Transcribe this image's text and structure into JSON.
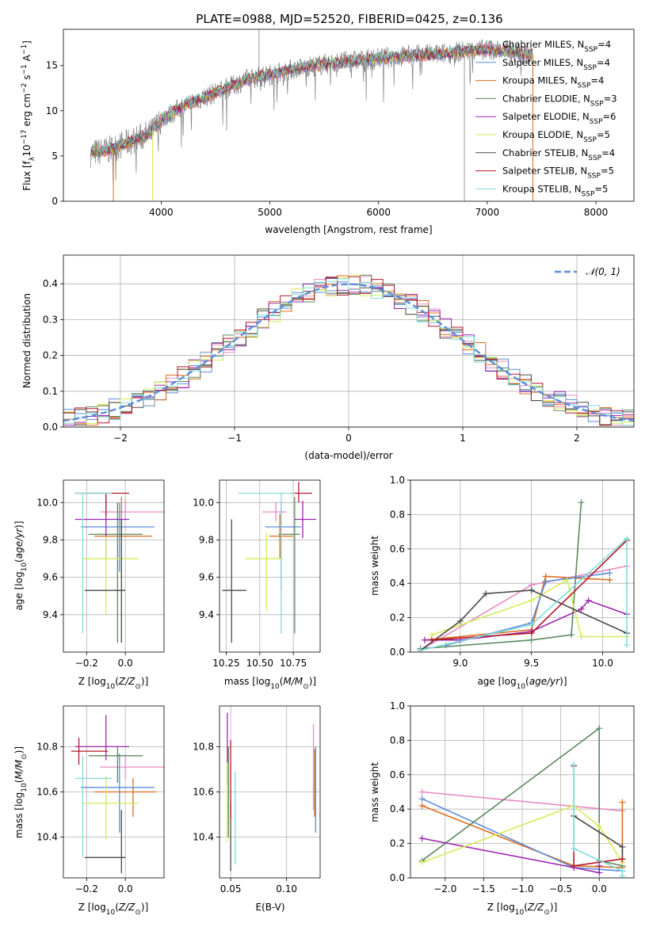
{
  "title": "PLATE=0988, MJD=52520, FIBERID=0425, z=0.136",
  "colors": [
    "#e78ac3",
    "#dd6d1f",
    "#e08214",
    "#5b8a5e",
    "#9c27b0",
    "#c9e65a",
    "#3f3f3f",
    "#b2182b",
    "#7fd6d6"
  ],
  "colors_named": {
    "pink": "#e78ac3",
    "orange": "#dd6d1f",
    "blue": "#5b8bdc",
    "green": "#5b8a5e",
    "purple": "#9c27b0",
    "lime": "#d4ec58",
    "dark": "#4a4a4a",
    "red": "#b2182b",
    "cyan": "#80dcd8",
    "gray": "#808080"
  },
  "chart_data": [
    {
      "id": "spectrum",
      "type": "line",
      "xlabel": "wavelength [Angstrom, rest frame]",
      "ylabel_main": "Flux [f",
      "ylabel_sub": "λ",
      "ylabel_mid": "10",
      "ylabel_exp1": "−17",
      "ylabel_rest": " erg cm",
      "ylabel_exp2": "−2",
      "ylabel_rest2": " s",
      "ylabel_exp3": "−1",
      "ylabel_rest3": " A",
      "ylabel_exp4": "−1",
      "ylabel_end": "]",
      "xlim": [
        3100,
        8350
      ],
      "ylim": [
        0,
        19
      ],
      "xticks": [
        4000,
        5000,
        6000,
        7000,
        8000
      ],
      "yticks": [
        0,
        5,
        10,
        15
      ],
      "legend": [
        {
          "label": "Chabrier MILES, N",
          "sub": "SSP",
          "n": "=4",
          "color": "#e78ac3"
        },
        {
          "label": "Salpeter MILES, N",
          "sub": "SSP",
          "n": "=4",
          "color": "#5b8bdc"
        },
        {
          "label": "Kroupa MILES, N",
          "sub": "SSP",
          "n": "=4",
          "color": "#dd6d1f"
        },
        {
          "label": "Chabrier ELODIE, N",
          "sub": "SSP",
          "n": "=3",
          "color": "#5b8a5e"
        },
        {
          "label": "Salpeter ELODIE, N",
          "sub": "SSP",
          "n": "=6",
          "color": "#9c27b0"
        },
        {
          "label": "Kroupa ELODIE, N",
          "sub": "SSP",
          "n": "=5",
          "color": "#d4ec58"
        },
        {
          "label": "Chabrier STELIB, N",
          "sub": "SSP",
          "n": "=4",
          "color": "#4a4a4a"
        },
        {
          "label": "Salpeter STELIB, N",
          "sub": "SSP",
          "n": "=5",
          "color": "#b2182b"
        },
        {
          "label": "Kroupa STELIB, N",
          "sub": "SSP",
          "n": "=5",
          "color": "#80dcd8"
        }
      ],
      "continuum": {
        "x": [
          3350,
          3500,
          3700,
          3900,
          4000,
          4200,
          4400,
          4600,
          4800,
          5000,
          5300,
          5600,
          6000,
          6300,
          6600,
          6800,
          7000,
          7200,
          7400
        ],
        "y": [
          5.3,
          5.6,
          6.5,
          7.5,
          9.0,
          10.5,
          11.5,
          12.5,
          13.5,
          14.0,
          14.8,
          15.3,
          15.8,
          16.1,
          16.3,
          16.6,
          16.8,
          16.6,
          16.2
        ]
      }
    },
    {
      "id": "residuals",
      "type": "histogram",
      "xlabel": "(data-model)/error",
      "ylabel": "Normed distribution",
      "xlim": [
        -2.5,
        2.5
      ],
      "ylim": [
        0,
        0.48
      ],
      "xticks": [
        -2,
        -1,
        0,
        1,
        2
      ],
      "yticks": [
        0.0,
        0.1,
        0.2,
        0.3,
        0.4
      ],
      "legend_label": "𝒩(0, 1)",
      "bin_width": 0.1
    },
    {
      "id": "age_vs_Z",
      "type": "errorbar",
      "xlabel": "Z [log",
      "xlabel_sub": "10",
      "xlabel_rest": "(Z/Z",
      "xlabel_sub2": "⊙",
      "xlabel_end": ")]",
      "ylabel": "age  [log",
      "ylabel_sub": "10",
      "ylabel_rest": "(age/yr)]",
      "xlim": [
        -0.32,
        0.2
      ],
      "ylim": [
        9.2,
        10.12
      ],
      "xticks": [
        -0.2,
        0.0
      ],
      "yticks": [
        9.4,
        9.6,
        9.8,
        10.0
      ],
      "points": [
        {
          "x": 0.0,
          "xerr": [
            0.13,
            0.22
          ],
          "y": 9.95,
          "yerr": [
            0.04,
            0.07
          ],
          "color": "#e78ac3"
        },
        {
          "x": -0.02,
          "xerr": [
            0.14,
            0.16
          ],
          "y": 9.82,
          "yerr": [
            0.0,
            0.21
          ],
          "color": "#dd6d1f"
        },
        {
          "x": -0.03,
          "xerr": [
            0.2,
            0.18
          ],
          "y": 9.87,
          "yerr": [
            0.24,
            0.13
          ],
          "color": "#5b8bdc"
        },
        {
          "x": -0.04,
          "xerr": [
            0.15,
            0.13
          ],
          "y": 9.83,
          "yerr": [
            0.58,
            0.17
          ],
          "color": "#5b8a5e"
        },
        {
          "x": -0.1,
          "xerr": [
            0.16,
            0.12
          ],
          "y": 9.91,
          "yerr": [
            0.21,
            0.13
          ],
          "color": "#9c27b0"
        },
        {
          "x": -0.1,
          "xerr": [
            0.12,
            0.17
          ],
          "y": 9.7,
          "yerr": [
            0.3,
            0.12
          ],
          "color": "#d4ec58"
        },
        {
          "x": -0.02,
          "xerr": [
            0.19,
            0.02
          ],
          "y": 9.53,
          "yerr": [
            0.28,
            0.38
          ],
          "color": "#4a4a4a"
        },
        {
          "x": -0.1,
          "xerr": [
            0.16,
            0.12
          ],
          "y": 10.05,
          "yerr": [
            0.12,
            0.0
          ],
          "color": "#b2182b"
        },
        {
          "x": -0.22,
          "xerr": [
            0.04,
            0.15
          ],
          "y": 10.05,
          "yerr": [
            0.75,
            0.0
          ],
          "color": "#80dcd8"
        }
      ]
    },
    {
      "id": "age_vs_mass",
      "type": "errorbar",
      "xlabel": "mass [log",
      "xlabel_sub": "10",
      "xlabel_rest": "(M/M",
      "xlabel_sub2": "⊙",
      "xlabel_end": ")]",
      "xlim": [
        10.2,
        10.95
      ],
      "ylim": [
        9.2,
        10.12
      ],
      "xticks": [
        10.25,
        10.5,
        10.75
      ],
      "yticks": [
        9.4,
        9.6,
        9.8,
        10.0
      ],
      "points": [
        {
          "x": 10.62,
          "xerr": [
            0.1,
            0.08
          ],
          "y": 9.95,
          "yerr": [
            0.05,
            0.05
          ],
          "color": "#e78ac3"
        },
        {
          "x": 10.65,
          "xerr": [
            0.08,
            0.1
          ],
          "y": 9.82,
          "yerr": [
            0.12,
            0.12
          ],
          "color": "#dd6d1f"
        },
        {
          "x": 10.66,
          "xerr": [
            0.12,
            0.15
          ],
          "y": 9.87,
          "yerr": [
            0.34,
            0.13
          ],
          "color": "#5b8bdc"
        },
        {
          "x": 10.76,
          "xerr": [
            0.12,
            0.04
          ],
          "y": 9.83,
          "yerr": [
            0.53,
            0.2
          ],
          "color": "#5b8a5e"
        },
        {
          "x": 10.82,
          "xerr": [
            0.06,
            0.1
          ],
          "y": 9.91,
          "yerr": [
            0.1,
            0.1
          ],
          "color": "#9c27b0"
        },
        {
          "x": 10.55,
          "xerr": [
            0.16,
            0.12
          ],
          "y": 9.7,
          "yerr": [
            0.28,
            0.14
          ],
          "color": "#d4ec58"
        },
        {
          "x": 10.29,
          "xerr": [
            0.07,
            0.11
          ],
          "y": 9.53,
          "yerr": [
            0.28,
            0.38
          ],
          "color": "#4a4a4a"
        },
        {
          "x": 10.79,
          "xerr": [
            0.06,
            0.1
          ],
          "y": 10.05,
          "yerr": [
            0.05,
            0.06
          ],
          "color": "#b2182b"
        },
        {
          "x": 10.66,
          "xerr": [
            0.32,
            0.1
          ],
          "y": 10.05,
          "yerr": [
            0.75,
            0.0
          ],
          "color": "#80dcd8"
        }
      ]
    },
    {
      "id": "weight_vs_age",
      "type": "line",
      "xlabel": "age  [log",
      "xlabel_sub": "10",
      "xlabel_rest": "(age/yr)]",
      "ylabel": "mass weight",
      "xlim": [
        8.65,
        10.22
      ],
      "ylim": [
        0,
        1.0
      ],
      "xticks": [
        9.0,
        9.5,
        10.0
      ],
      "yticks": [
        0.0,
        0.2,
        0.4,
        0.6,
        0.8,
        1.0
      ],
      "series": [
        {
          "color": "#e78ac3",
          "x": [
            8.72,
            9.5,
            10.17
          ],
          "y": [
            0.01,
            0.39,
            0.5
          ]
        },
        {
          "color": "#dd6d1f",
          "x": [
            8.75,
            9.5,
            9.6,
            10.05
          ],
          "y": [
            0.07,
            0.13,
            0.44,
            0.42
          ]
        },
        {
          "color": "#5b8bdc",
          "x": [
            8.9,
            9.5,
            9.6,
            10.05
          ],
          "y": [
            0.04,
            0.17,
            0.41,
            0.46
          ]
        },
        {
          "color": "#5b8a5e",
          "x": [
            8.72,
            9.5,
            9.78,
            9.85
          ],
          "y": [
            0.02,
            0.07,
            0.1,
            0.87
          ]
        },
        {
          "color": "#9c27b0",
          "x": [
            8.75,
            9.0,
            9.5,
            9.85,
            9.9,
            10.17
          ],
          "y": [
            0.07,
            0.07,
            0.12,
            0.25,
            0.3,
            0.22
          ]
        },
        {
          "color": "#d4ec58",
          "x": [
            8.8,
            9.5,
            9.75,
            9.85,
            10.17
          ],
          "y": [
            0.1,
            0.3,
            0.42,
            0.09,
            0.09
          ]
        },
        {
          "color": "#4a4a4a",
          "x": [
            8.72,
            9.0,
            9.18,
            9.5,
            10.17
          ],
          "y": [
            0.01,
            0.18,
            0.34,
            0.36,
            0.11
          ]
        },
        {
          "color": "#b2182b",
          "x": [
            8.8,
            9.5,
            10.17
          ],
          "y": [
            0.07,
            0.11,
            0.65
          ]
        },
        {
          "color": "#80dcd8",
          "x": [
            8.72,
            9.5,
            10.17,
            10.17
          ],
          "y": [
            0.01,
            0.16,
            0.66,
            0.04
          ]
        }
      ]
    },
    {
      "id": "mass_vs_Z",
      "type": "errorbar",
      "xlabel": "Z [log",
      "xlabel_sub": "10",
      "xlabel_rest": "(Z/Z",
      "xlabel_sub2": "⊙",
      "xlabel_end": ")]",
      "ylabel": "mass [log",
      "ylabel_sub": "10",
      "ylabel_rest": "(M/M",
      "ylabel_sub2": "⊙",
      "ylabel_end": ")]",
      "xlim": [
        -0.32,
        0.2
      ],
      "ylim": [
        10.22,
        10.98
      ],
      "xticks": [
        -0.2,
        0.0
      ],
      "yticks": [
        10.4,
        10.6,
        10.8
      ],
      "points": [
        {
          "x": 0.0,
          "xerr": [
            0.13,
            0.22
          ],
          "y": 10.71,
          "yerr": [
            0.05,
            0.05
          ],
          "color": "#e78ac3"
        },
        {
          "x": 0.04,
          "xerr": [
            0.2,
            0.12
          ],
          "y": 10.6,
          "yerr": [
            0.11,
            0.06
          ],
          "color": "#dd6d1f"
        },
        {
          "x": -0.03,
          "xerr": [
            0.2,
            0.18
          ],
          "y": 10.62,
          "yerr": [
            0.2,
            0.15
          ],
          "color": "#5b8bdc"
        },
        {
          "x": -0.04,
          "xerr": [
            0.15,
            0.13
          ],
          "y": 10.76,
          "yerr": [
            0.12,
            0.04
          ],
          "color": "#5b8a5e"
        },
        {
          "x": -0.1,
          "xerr": [
            0.16,
            0.12
          ],
          "y": 10.8,
          "yerr": [
            0.06,
            0.14
          ],
          "color": "#9c27b0"
        },
        {
          "x": -0.1,
          "xerr": [
            0.12,
            0.17
          ],
          "y": 10.55,
          "yerr": [
            0.16,
            0.12
          ],
          "color": "#d4ec58"
        },
        {
          "x": -0.02,
          "xerr": [
            0.19,
            0.02
          ],
          "y": 10.31,
          "yerr": [
            0.07,
            0.21
          ],
          "color": "#4a4a4a"
        },
        {
          "x": -0.24,
          "xerr": [
            0.04,
            0.15
          ],
          "y": 10.78,
          "yerr": [
            0.06,
            0.06
          ],
          "color": "#b2182b"
        },
        {
          "x": -0.22,
          "xerr": [
            0.04,
            0.15
          ],
          "y": 10.66,
          "yerr": [
            0.35,
            0.1
          ],
          "color": "#80dcd8"
        }
      ]
    },
    {
      "id": "mass_vs_EBV",
      "type": "errorbar",
      "xlabel": "E(B-V)",
      "xlim": [
        0.04,
        0.13
      ],
      "ylim": [
        10.22,
        10.98
      ],
      "xticks": [
        0.05,
        0.1
      ],
      "yticks": [
        10.4,
        10.6,
        10.8
      ],
      "points": [
        {
          "x": 0.124,
          "y": 10.71,
          "yerr": [
            0.19,
            0.19
          ],
          "color": "#e78ac3"
        },
        {
          "x": 0.125,
          "y": 10.6,
          "yerr": [
            0.11,
            0.19
          ],
          "color": "#dd6d1f"
        },
        {
          "x": 0.126,
          "y": 10.62,
          "yerr": [
            0.2,
            0.18
          ],
          "color": "#5b8bdc"
        },
        {
          "x": 0.048,
          "y": 10.6,
          "yerr": [
            0.2,
            0.2
          ],
          "color": "#5b8a5e"
        },
        {
          "x": 0.047,
          "y": 10.8,
          "yerr": [
            0.16,
            0.15
          ],
          "color": "#9c27b0"
        },
        {
          "x": 0.047,
          "y": 10.55,
          "yerr": [
            0.17,
            0.18
          ],
          "color": "#d4ec58"
        },
        {
          "x": 0.05,
          "y": 10.4,
          "yerr": [
            0.15,
            0.15
          ],
          "color": "#4a4a4a"
        },
        {
          "x": 0.05,
          "y": 10.65,
          "yerr": [
            0.17,
            0.18
          ],
          "color": "#b2182b"
        },
        {
          "x": 0.054,
          "y": 10.48,
          "yerr": [
            0.2,
            0.21
          ],
          "color": "#80dcd8"
        }
      ]
    },
    {
      "id": "weight_vs_Z",
      "type": "line",
      "xlabel": "Z [log",
      "xlabel_sub": "10",
      "xlabel_rest": "(Z/Z",
      "xlabel_sub2": "⊙",
      "xlabel_end": ")]",
      "ylabel": "mass weight",
      "xlim": [
        -2.45,
        0.45
      ],
      "ylim": [
        0,
        1.0
      ],
      "xticks": [
        -2.0,
        -1.5,
        -1.0,
        -0.5,
        0.0
      ],
      "yticks": [
        0.0,
        0.2,
        0.4,
        0.6,
        0.8,
        1.0
      ],
      "series": [
        {
          "color": "#e78ac3",
          "x": [
            -2.3,
            0.3
          ],
          "y": [
            0.5,
            0.39
          ]
        },
        {
          "color": "#dd6d1f",
          "x": [
            -2.3,
            -0.33,
            0.3,
            0.3
          ],
          "y": [
            0.42,
            0.07,
            0.06,
            0.44
          ]
        },
        {
          "color": "#5b8bdc",
          "x": [
            -2.3,
            -0.33,
            0.3
          ],
          "y": [
            0.46,
            0.06,
            0.04
          ]
        },
        {
          "color": "#5b8a5e",
          "x": [
            -2.3,
            0.0,
            0.0,
            0.3
          ],
          "y": [
            0.1,
            0.87,
            0.1,
            0.07
          ]
        },
        {
          "color": "#9c27b0",
          "x": [
            -2.3,
            -0.33,
            0.0,
            0.0
          ],
          "y": [
            0.23,
            0.06,
            0.03,
            0.07
          ]
        },
        {
          "color": "#d4ec58",
          "x": [
            -2.3,
            -0.33,
            0.0,
            0.3
          ],
          "y": [
            0.09,
            0.42,
            0.3,
            0.09
          ]
        },
        {
          "color": "#4a4a4a",
          "x": [
            -0.33,
            0.3,
            0.3
          ],
          "y": [
            0.36,
            0.18,
            0.11
          ]
        },
        {
          "color": "#b2182b",
          "x": [
            -0.33,
            -0.33,
            0.3
          ],
          "y": [
            0.65,
            0.07,
            0.11
          ]
        },
        {
          "color": "#80dcd8",
          "x": [
            -0.33,
            -0.33,
            0.3,
            0.3
          ],
          "y": [
            0.66,
            0.17,
            0.04,
            0.01
          ]
        }
      ]
    }
  ]
}
